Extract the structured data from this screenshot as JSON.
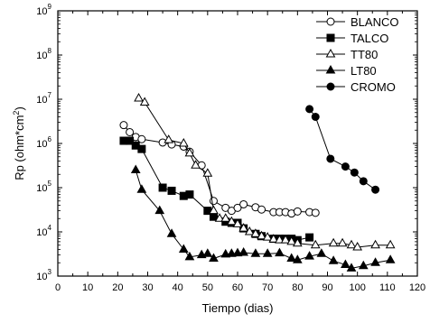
{
  "chart_data": {
    "type": "scatter",
    "title": "",
    "xlabel": "Tiempo (dias)",
    "ylabel": "Rp (ohm*cm",
    "ylabel_sup": "2",
    "ylabel_end": ")",
    "xlim": [
      0,
      120
    ],
    "ylim": [
      1000,
      1000000000
    ],
    "yscale": "log",
    "grid": false,
    "legend_position": "top-right",
    "xticks": [
      0,
      10,
      20,
      30,
      40,
      50,
      60,
      70,
      80,
      90,
      100,
      110,
      120
    ],
    "yticks": [
      {
        "value": 1000,
        "base": "10",
        "exp": "3"
      },
      {
        "value": 10000,
        "base": "10",
        "exp": "4"
      },
      {
        "value": 100000,
        "base": "10",
        "exp": "5"
      },
      {
        "value": 1000000,
        "base": "10",
        "exp": "6"
      },
      {
        "value": 10000000,
        "base": "10",
        "exp": "7"
      },
      {
        "value": 100000000,
        "base": "10",
        "exp": "8"
      },
      {
        "value": 1000000000,
        "base": "10",
        "exp": "9"
      }
    ],
    "series": [
      {
        "name": "BLANCO",
        "marker": "circle-open",
        "x": [
          22,
          24,
          26,
          28,
          35,
          38,
          42,
          44,
          48,
          52,
          56,
          58,
          60,
          62,
          66,
          68,
          72,
          74,
          76,
          78,
          80,
          84,
          86
        ],
        "y": [
          2600000,
          1800000,
          1400000,
          1250000,
          1050000,
          950000,
          850000,
          650000,
          320000,
          50000,
          35000,
          30000,
          35000,
          42000,
          36000,
          32000,
          28000,
          28000,
          28000,
          26000,
          29000,
          28000,
          27000
        ]
      },
      {
        "name": "TALCO",
        "marker": "square-filled",
        "x": [
          22,
          24,
          26,
          28,
          35,
          38,
          42,
          44,
          50,
          52,
          56,
          58,
          60,
          62,
          66,
          68,
          72,
          74,
          76,
          78,
          80,
          84
        ],
        "y": [
          1150000,
          1150000,
          900000,
          750000,
          100000,
          85000,
          65000,
          70000,
          30000,
          22000,
          17000,
          16000,
          16000,
          12000,
          9000,
          8000,
          7000,
          7000,
          7000,
          7000,
          6500,
          7500
        ]
      },
      {
        "name": "TT80",
        "marker": "triangle-open",
        "x": [
          27,
          29,
          37,
          42,
          44,
          46,
          50,
          52,
          54,
          56,
          58,
          60,
          62,
          64,
          66,
          68,
          70,
          72,
          74,
          76,
          78,
          80,
          86,
          92,
          95,
          98,
          100,
          106,
          111
        ],
        "y": [
          10500000,
          8500000,
          1200000,
          1000000,
          600000,
          320000,
          210000,
          30000,
          20000,
          20000,
          17000,
          15000,
          12000,
          10000,
          9000,
          8000,
          7500,
          6800,
          6500,
          6500,
          6000,
          5500,
          5000,
          5500,
          5500,
          5000,
          4500,
          5000,
          5000
        ]
      },
      {
        "name": "LT80",
        "marker": "triangle-filled",
        "x": [
          26,
          28,
          34,
          38,
          42,
          44,
          48,
          50,
          52,
          56,
          58,
          60,
          62,
          66,
          70,
          74,
          78,
          80,
          84,
          88,
          92,
          96,
          98,
          102,
          106,
          111
        ],
        "y": [
          250000,
          90000,
          30000,
          9000,
          4000,
          2700,
          3000,
          3200,
          2500,
          3100,
          3200,
          3300,
          3400,
          3200,
          3200,
          3300,
          2500,
          2300,
          2800,
          3200,
          2200,
          1800,
          1500,
          1700,
          2000,
          2300
        ]
      },
      {
        "name": "CROMO",
        "marker": "circle-filled",
        "x": [
          84,
          86,
          91,
          96,
          99,
          102,
          106
        ],
        "y": [
          6000000,
          4000000,
          450000,
          300000,
          220000,
          140000,
          90000
        ]
      }
    ]
  }
}
